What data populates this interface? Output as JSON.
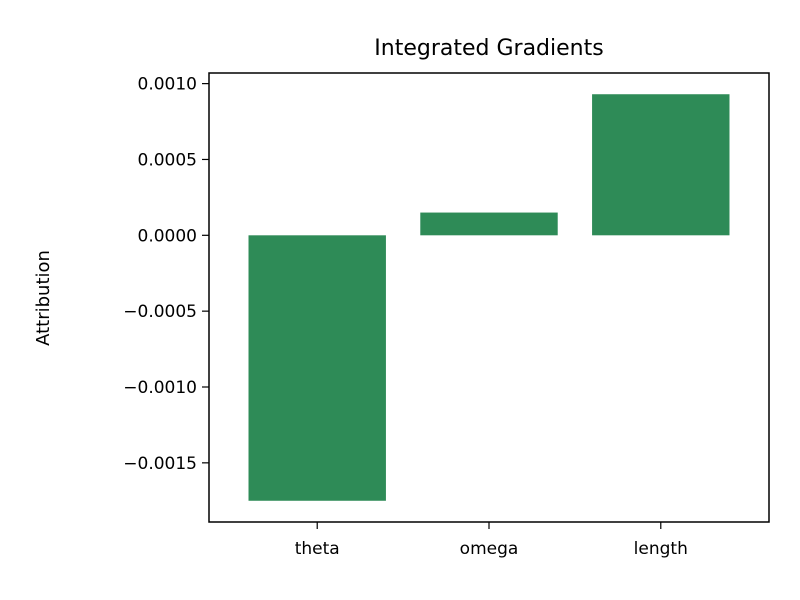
{
  "chart_data": {
    "type": "bar",
    "title": "Integrated Gradients",
    "xlabel": "",
    "ylabel": "Attribution",
    "categories": [
      "theta",
      "omega",
      "length"
    ],
    "values": [
      -0.00175,
      0.00015,
      0.00093
    ],
    "ylim": [
      -0.00189,
      0.00107
    ],
    "yticks": [
      0.001,
      0.0005,
      0.0,
      -0.0005,
      -0.001,
      -0.0015
    ],
    "ytick_labels": [
      "0.0010",
      "0.0005",
      "0.0000",
      "−0.0005",
      "−0.0010",
      "−0.0015"
    ],
    "grid": false,
    "bar_color": "#2e8b57"
  }
}
